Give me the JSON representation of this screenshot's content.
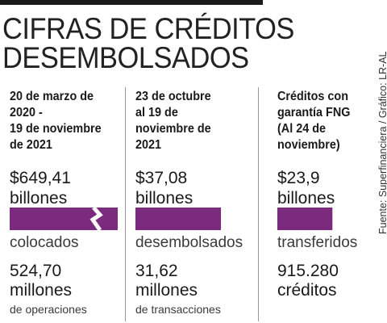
{
  "title_line1": "CIFRAS DE CRÉDITOS",
  "title_line2": "DESEMBOLSADOS",
  "source": "Fuente: Superfinanciera / Gráfico: LR-AL",
  "colors": {
    "bar": "#7b2a7e",
    "rule": "#1a1a1a",
    "divider": "#9a9a9a"
  },
  "columns": [
    {
      "period_lines": [
        "20 de marzo de",
        "2020 -",
        "19 de noviembre",
        "de 2021"
      ],
      "amount": "$649,41",
      "amount_unit": "billones",
      "status": "colocados",
      "count": "524,70",
      "count_unit": "millones",
      "count_sub": "de operaciones",
      "bar_broken": true
    },
    {
      "period_lines": [
        "23 de octubre",
        "al 19 de",
        "noviembre de",
        "2021"
      ],
      "amount": "$37,08",
      "amount_unit": "billones",
      "status": "desembolsados",
      "count": "31,62",
      "count_unit": "millones",
      "count_sub": "de transacciones",
      "bar_broken": false
    },
    {
      "period_lines": [
        "Créditos con",
        "garantía FNG",
        "(Al 24 de",
        "noviembre)"
      ],
      "amount": "$23,9",
      "amount_unit": "billones",
      "status": "transferidos",
      "count": "915.280",
      "count_unit": "créditos",
      "count_sub": "",
      "bar_broken": false
    }
  ],
  "chart_data": {
    "type": "bar",
    "unit": "billones",
    "categories": [
      "colocados",
      "desembolsados",
      "transferidos"
    ],
    "values": [
      649.41,
      37.08,
      23.9
    ],
    "axis_break_on_first_bar": true
  }
}
